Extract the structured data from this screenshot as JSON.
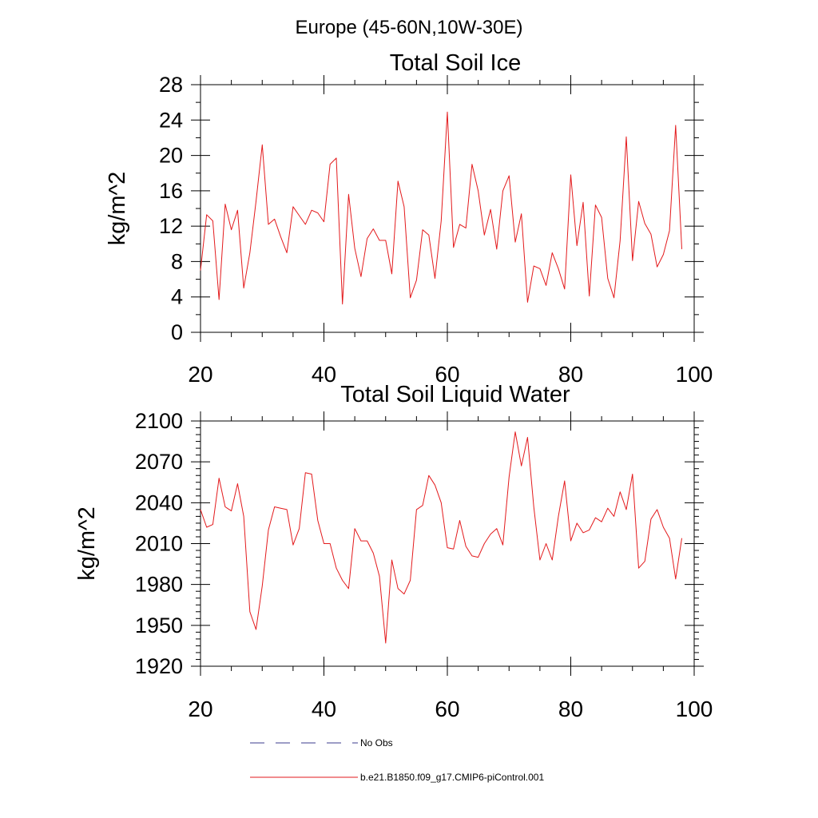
{
  "figure_title": "Europe (45-60N,10W-30E)",
  "legend": [
    {
      "label": "No Obs",
      "style": "dashed",
      "color": "#3b3b8c"
    },
    {
      "label": "b.e21.B1850.f09_g17.CMIP6-piControl.001",
      "style": "solid",
      "color": "#e31a1c"
    }
  ],
  "chart_data": [
    {
      "type": "line",
      "title": "Total Soil Ice",
      "xlabel": "",
      "ylabel": "kg/m^2",
      "xlim": [
        20,
        100
      ],
      "ylim": [
        0,
        28
      ],
      "xticks": [
        20,
        40,
        60,
        80,
        100
      ],
      "yticks": [
        0,
        4,
        8,
        12,
        16,
        20,
        24,
        28
      ],
      "yminor": 1,
      "xminor": 5,
      "series": [
        {
          "name": "b.e21.B1850.f09_g17.CMIP6-piControl.001",
          "color": "#e31a1c",
          "x": [
            20,
            21,
            22,
            23,
            24,
            25,
            26,
            27,
            28,
            29,
            30,
            31,
            32,
            33,
            34,
            35,
            36,
            37,
            38,
            39,
            40,
            41,
            42,
            43,
            44,
            45,
            46,
            47,
            48,
            49,
            50,
            51,
            52,
            53,
            54,
            55,
            56,
            57,
            58,
            59,
            60,
            61,
            62,
            63,
            64,
            65,
            66,
            67,
            68,
            69,
            70,
            71,
            72,
            73,
            74,
            75,
            76,
            77,
            78,
            79,
            80,
            81,
            82,
            83,
            84,
            85,
            86,
            87,
            88,
            89,
            90,
            91,
            92,
            93,
            94,
            95,
            96,
            97,
            98
          ],
          "values": [
            7.0,
            13.3,
            12.6,
            3.7,
            14.5,
            11.6,
            13.8,
            5.0,
            9.0,
            14.8,
            21.2,
            12.2,
            12.8,
            10.8,
            9.0,
            14.2,
            13.2,
            12.2,
            13.8,
            13.5,
            12.5,
            19.0,
            19.7,
            3.2,
            15.6,
            9.5,
            6.3,
            10.6,
            11.7,
            10.4,
            10.4,
            6.6,
            17.1,
            14.2,
            3.9,
            5.9,
            11.6,
            11.0,
            6.1,
            12.6,
            24.9,
            9.6,
            12.2,
            11.8,
            19.0,
            16.0,
            11.0,
            13.9,
            9.4,
            16.0,
            17.7,
            10.2,
            13.4,
            3.4,
            7.5,
            7.2,
            5.3,
            9.0,
            7.2,
            4.9,
            17.8,
            9.8,
            14.7,
            4.1,
            14.4,
            13.0,
            6.1,
            3.9,
            10.4,
            22.1,
            8.1,
            14.8,
            12.3,
            11.1,
            7.4,
            8.8,
            11.5,
            23.4,
            9.4
          ]
        }
      ]
    },
    {
      "type": "line",
      "title": "Total Soil Liquid Water",
      "xlabel": "",
      "ylabel": "kg/m^2",
      "xlim": [
        20,
        100
      ],
      "ylim": [
        1920,
        2100
      ],
      "xticks": [
        20,
        40,
        60,
        80,
        100
      ],
      "yticks": [
        1920,
        1950,
        1980,
        2010,
        2040,
        2070,
        2100
      ],
      "yminor": 6,
      "xminor": 5,
      "series": [
        {
          "name": "b.e21.B1850.f09_g17.CMIP6-piControl.001",
          "color": "#e31a1c",
          "x": [
            20,
            21,
            22,
            23,
            24,
            25,
            26,
            27,
            28,
            29,
            30,
            31,
            32,
            33,
            34,
            35,
            36,
            37,
            38,
            39,
            40,
            41,
            42,
            43,
            44,
            45,
            46,
            47,
            48,
            49,
            50,
            51,
            52,
            53,
            54,
            55,
            56,
            57,
            58,
            59,
            60,
            61,
            62,
            63,
            64,
            65,
            66,
            67,
            68,
            69,
            70,
            71,
            72,
            73,
            74,
            75,
            76,
            77,
            78,
            79,
            80,
            81,
            82,
            83,
            84,
            85,
            86,
            87,
            88,
            89,
            90,
            91,
            92,
            93,
            94,
            95,
            96,
            97,
            98
          ],
          "values": [
            2035,
            2022,
            2024,
            2058,
            2037,
            2034,
            2054,
            2030,
            1960,
            1947,
            1979,
            2020,
            2037,
            2036,
            2035,
            2009,
            2021,
            2062,
            2061,
            2027,
            2010,
            2010,
            1992,
            1983,
            1977,
            2021,
            2012,
            2012,
            2003,
            1986,
            1937,
            1998,
            1977,
            1973,
            1983,
            2035,
            2038,
            2060,
            2053,
            2040,
            2007,
            2006,
            2027,
            2008,
            2001,
            2000,
            2010,
            2017,
            2021,
            2009,
            2059,
            2092,
            2067,
            2088,
            2037,
            1998,
            2010,
            1998,
            2030,
            2056,
            2012,
            2025,
            2018,
            2020,
            2029,
            2026,
            2036,
            2030,
            2048,
            2035,
            2061,
            1992,
            1997,
            2028,
            2035,
            2022,
            2014,
            1984,
            2014
          ]
        }
      ]
    }
  ]
}
